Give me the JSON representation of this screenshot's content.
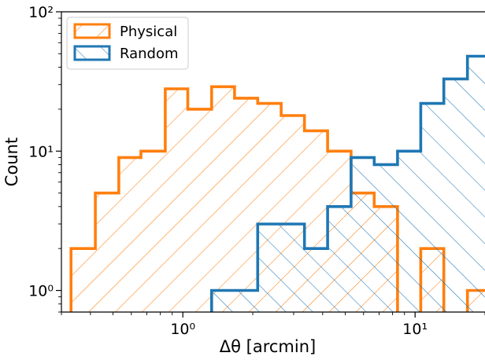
{
  "chart_data": {
    "type": "histogram",
    "title": "",
    "xlabel": "Δθ [arcmin]",
    "ylabel": "Count",
    "x_scale": "log",
    "y_scale": "log",
    "xlim": [
      0.3,
      20
    ],
    "ylim": [
      0.7,
      100
    ],
    "y_ticks": [
      {
        "value": 1,
        "label": "10⁰"
      },
      {
        "value": 10,
        "label": "10¹"
      },
      {
        "value": 100,
        "label": "10²"
      }
    ],
    "x_ticks": [
      {
        "value": 1,
        "label": "10⁰"
      },
      {
        "value": 10,
        "label": "10¹"
      }
    ],
    "bin_edges": [
      0.33,
      0.42,
      0.53,
      0.66,
      0.84,
      1.05,
      1.33,
      1.67,
      2.1,
      2.65,
      3.34,
      4.2,
      5.3,
      6.67,
      8.4,
      10.58,
      13.3,
      16.8,
      21.1
    ],
    "series": [
      {
        "name": "Physical",
        "color": "#ff7f0e",
        "hatch": "/",
        "counts": [
          2,
          5,
          9,
          10,
          28,
          20,
          29,
          24,
          22,
          18,
          14,
          10,
          5,
          4,
          0,
          2,
          0,
          1
        ]
      },
      {
        "name": "Random",
        "color": "#1f77b4",
        "hatch": "\\",
        "counts": [
          0,
          0,
          0,
          0,
          0,
          0,
          1,
          1,
          3,
          3,
          2,
          4,
          9,
          8,
          10,
          22,
          33,
          48
        ]
      }
    ],
    "legend": {
      "location": "top-left",
      "entries": [
        "Physical",
        "Random"
      ]
    },
    "grid": false
  }
}
